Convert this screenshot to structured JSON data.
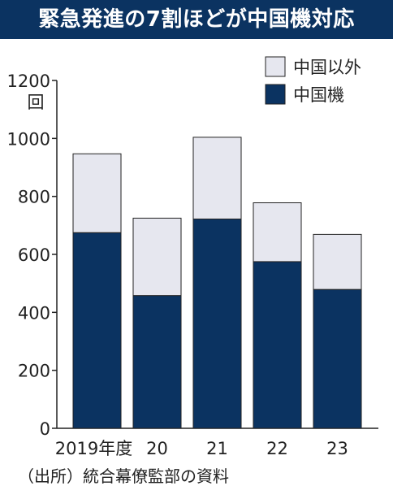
{
  "chart_data": {
    "type": "bar",
    "stacked": true,
    "title": "緊急発進の7割ほどが中国機対応",
    "ylabel": "回",
    "ylim": [
      0,
      1200
    ],
    "yticks": [
      0,
      200,
      400,
      600,
      800,
      1000,
      1200
    ],
    "categories": [
      "2019年度",
      "20",
      "21",
      "22",
      "23"
    ],
    "series": [
      {
        "name": "中国機",
        "values": [
          675,
          458,
          722,
          575,
          479
        ],
        "color": "#0b3361"
      },
      {
        "name": "中国以外",
        "values": [
          272,
          267,
          282,
          203,
          190
        ],
        "color": "#e6e7ef"
      }
    ],
    "legend_position": "top-right",
    "grid": false,
    "source": "（出所）統合幕僚監部の資料"
  }
}
